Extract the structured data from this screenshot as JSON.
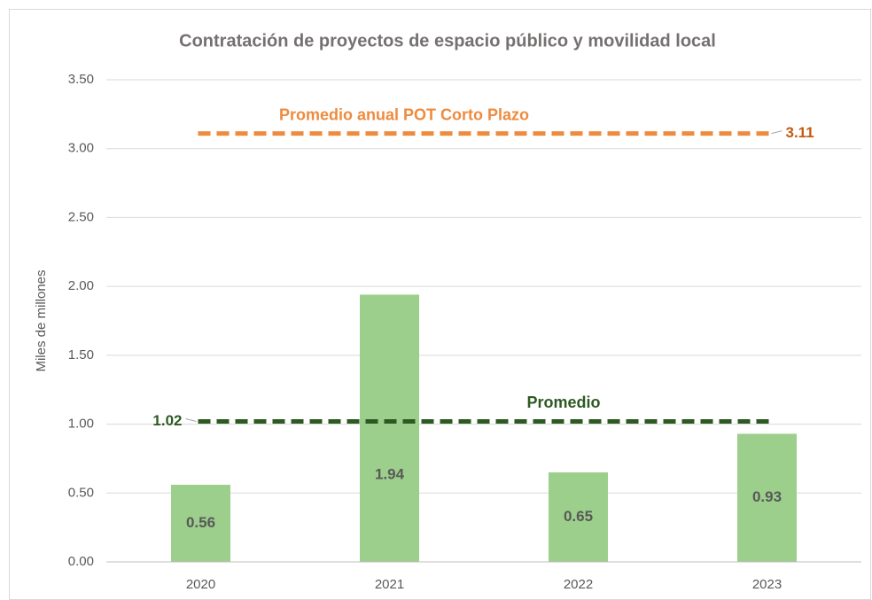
{
  "chart_data": {
    "type": "bar",
    "title": "Contratación de proyectos de espacio público y movilidad local",
    "y_label": "Miles de millones",
    "categories": [
      "2020",
      "2021",
      "2022",
      "2023"
    ],
    "values": [
      0.56,
      1.94,
      0.65,
      0.93
    ],
    "color": "#9bcf8b",
    "ylim": [
      0,
      3.5
    ],
    "yticks": [
      {
        "value": 0,
        "label": "0.00"
      },
      {
        "value": 0.5,
        "label": "0.50"
      },
      {
        "value": 1,
        "label": "1.00"
      },
      {
        "value": 1.5,
        "label": "1.50"
      },
      {
        "value": 2,
        "label": "2.00"
      },
      {
        "value": 2.5,
        "label": "2.50"
      },
      {
        "value": 3,
        "label": "3.00"
      },
      {
        "value": 3.5,
        "label": "3.50"
      }
    ],
    "grid": true,
    "reference_lines": [
      {
        "name": "Promedio anual  POT Corto Plazo",
        "value": 3.11,
        "color": "#ee8b3e",
        "label_color": "#c55a11",
        "label_side": "right"
      },
      {
        "name": "Promedio",
        "value": 1.02,
        "color": "#2d5a22",
        "label_color": "#2d5a22",
        "label_side": "left"
      }
    ]
  }
}
